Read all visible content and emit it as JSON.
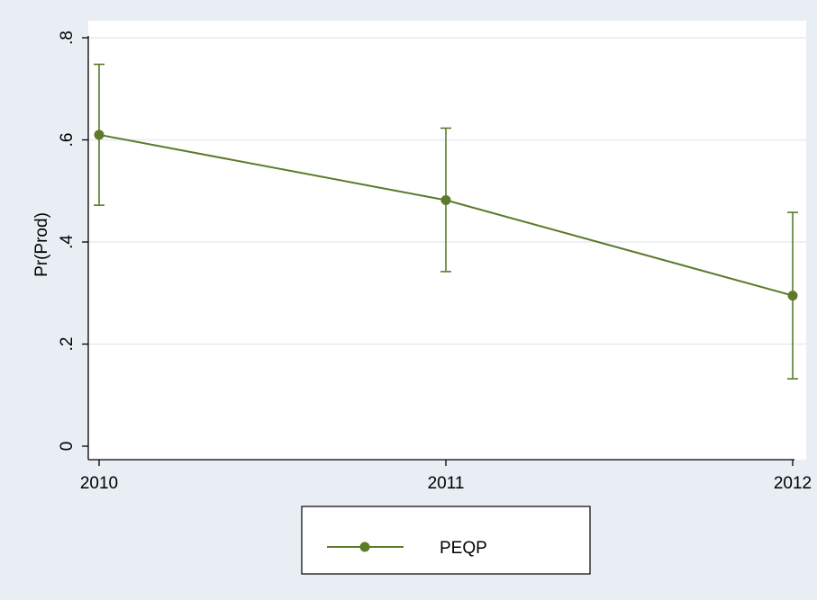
{
  "chart_data": {
    "type": "line",
    "title": "",
    "xlabel": "",
    "ylabel": "Pr(Prod)",
    "x": [
      2010,
      2011,
      2012
    ],
    "x_tick_labels": [
      "2010",
      "2011",
      "2012"
    ],
    "y_ticks": [
      0,
      0.2,
      0.4,
      0.6,
      0.8
    ],
    "y_tick_labels": [
      "0",
      ".2",
      ".4",
      ".6",
      ".8"
    ],
    "ylim": [
      0,
      0.8
    ],
    "xlim": [
      2010,
      2012
    ],
    "grid": true,
    "legend_position": "bottom",
    "series": [
      {
        "name": "PEQP",
        "color": "#5b7a2a",
        "values": [
          0.61,
          0.482,
          0.295
        ],
        "ci_lower": [
          0.472,
          0.342,
          0.132
        ],
        "ci_upper": [
          0.748,
          0.623,
          0.458
        ]
      }
    ]
  },
  "colors": {
    "outer_background": "#e8eef4",
    "plot_background": "#ffffff",
    "gridline": "#e6ebf0",
    "axis": "#000000"
  }
}
